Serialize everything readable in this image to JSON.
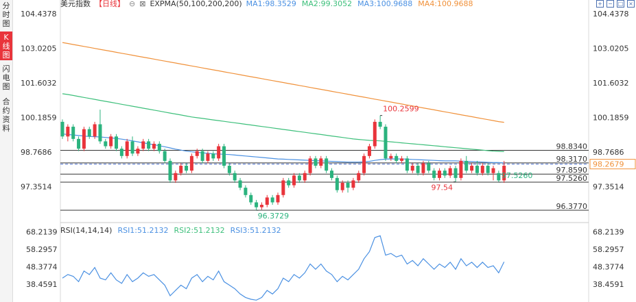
{
  "sidebar": {
    "tabs": [
      {
        "label": "分时图",
        "active": false
      },
      {
        "label": "K线图",
        "active": true
      },
      {
        "label": "闪电图",
        "active": false
      },
      {
        "label": "合约资料",
        "active": false
      }
    ]
  },
  "header": {
    "title": "美元指数",
    "period": "【日线】",
    "indicator": "EXPMA(50,100,200,200)",
    "ma": [
      {
        "label": "MA1:98.3529",
        "color": "#4a90e2"
      },
      {
        "label": "MA2:99.3052",
        "color": "#3cbf7a"
      },
      {
        "label": "MA3:100.9688",
        "color": "#4a90e2"
      },
      {
        "label": "MA4:100.9688",
        "color": "#f0913a"
      }
    ]
  },
  "toolbar": {
    "icons": [
      "zoom-in-icon",
      "zoom-out-icon",
      "fullscreen-icon",
      "close-icon"
    ]
  },
  "colors": {
    "up": "#e9343b",
    "down": "#2bb37e",
    "ma50": "#4a90e2",
    "ma100": "#3cbf7a",
    "ma200": "#f0913a",
    "rsi": "#4a90e2"
  },
  "chart_data": [
    {
      "type": "candlestick",
      "title": "美元指数【日线】",
      "y_ticks": [
        "104.4378",
        "103.0205",
        "101.6032",
        "100.1859",
        "98.7686",
        "97.3514"
      ],
      "ylim": [
        95.9,
        104.6
      ],
      "current_price": "98.2679",
      "candles": [
        [
          100.0,
          99.4,
          100.1,
          99.3
        ],
        [
          99.4,
          99.8,
          99.9,
          99.2
        ],
        [
          99.8,
          99.3,
          99.9,
          99.2
        ],
        [
          99.3,
          98.9,
          99.4,
          98.8
        ],
        [
          98.9,
          99.7,
          99.8,
          98.8
        ],
        [
          99.7,
          99.4,
          99.8,
          99.3
        ],
        [
          99.4,
          99.9,
          100.0,
          99.3
        ],
        [
          99.9,
          99.2,
          100.5,
          99.1
        ],
        [
          99.2,
          99.0,
          99.3,
          98.9
        ],
        [
          99.0,
          99.4,
          99.5,
          98.9
        ],
        [
          99.4,
          98.9,
          99.5,
          98.8
        ],
        [
          98.9,
          98.6,
          99.0,
          98.5
        ],
        [
          98.6,
          99.2,
          99.3,
          98.5
        ],
        [
          99.2,
          98.7,
          99.4,
          98.6
        ],
        [
          98.7,
          98.9,
          99.0,
          98.6
        ],
        [
          98.9,
          99.2,
          99.3,
          98.8
        ],
        [
          99.2,
          98.9,
          99.3,
          98.8
        ],
        [
          98.9,
          99.1,
          99.2,
          98.8
        ],
        [
          99.1,
          98.8,
          99.2,
          98.7
        ],
        [
          98.8,
          98.4,
          98.9,
          98.3
        ],
        [
          98.4,
          97.6,
          98.5,
          97.5
        ],
        [
          97.6,
          97.9,
          98.0,
          97.5
        ],
        [
          97.9,
          98.2,
          98.3,
          97.8
        ],
        [
          98.2,
          98.0,
          98.3,
          97.9
        ],
        [
          98.0,
          98.6,
          98.7,
          97.9
        ],
        [
          98.6,
          98.8,
          98.9,
          98.5
        ],
        [
          98.8,
          98.4,
          98.9,
          98.3
        ],
        [
          98.4,
          98.7,
          98.8,
          98.3
        ],
        [
          98.7,
          98.5,
          98.8,
          98.4
        ],
        [
          98.5,
          99.0,
          99.1,
          98.4
        ],
        [
          99.0,
          98.2,
          99.1,
          98.1
        ],
        [
          98.2,
          97.9,
          98.3,
          97.8
        ],
        [
          97.9,
          97.6,
          98.0,
          97.5
        ],
        [
          97.6,
          97.3,
          97.7,
          97.2
        ],
        [
          97.3,
          97.0,
          97.4,
          96.9
        ],
        [
          97.0,
          96.7,
          97.1,
          96.6
        ],
        [
          96.7,
          96.5,
          96.8,
          96.37
        ],
        [
          96.5,
          96.6,
          96.7,
          96.4
        ],
        [
          96.6,
          96.9,
          97.0,
          96.5
        ],
        [
          96.9,
          96.7,
          97.0,
          96.6
        ],
        [
          96.7,
          97.0,
          97.1,
          96.6
        ],
        [
          97.0,
          97.6,
          97.7,
          96.9
        ],
        [
          97.6,
          97.4,
          97.7,
          97.3
        ],
        [
          97.4,
          97.8,
          97.9,
          97.3
        ],
        [
          97.8,
          97.6,
          97.9,
          97.5
        ],
        [
          97.6,
          97.9,
          98.0,
          97.5
        ],
        [
          97.9,
          98.5,
          98.6,
          97.8
        ],
        [
          98.5,
          98.2,
          98.6,
          98.1
        ],
        [
          98.2,
          98.5,
          98.6,
          98.1
        ],
        [
          98.5,
          98.0,
          98.6,
          97.9
        ],
        [
          98.0,
          97.7,
          98.1,
          97.6
        ],
        [
          97.7,
          97.2,
          97.8,
          97.1
        ],
        [
          97.2,
          97.5,
          97.6,
          97.1
        ],
        [
          97.5,
          97.3,
          97.6,
          97.1
        ],
        [
          97.3,
          97.6,
          97.7,
          97.2
        ],
        [
          97.6,
          97.9,
          98.0,
          97.5
        ],
        [
          97.9,
          98.6,
          98.7,
          97.8
        ],
        [
          98.6,
          99.0,
          99.1,
          98.5
        ],
        [
          99.0,
          100.0,
          100.1,
          98.9
        ],
        [
          100.0,
          99.8,
          100.26,
          99.7
        ],
        [
          99.8,
          98.5,
          99.9,
          98.4
        ],
        [
          98.5,
          98.6,
          98.7,
          98.4
        ],
        [
          98.6,
          98.4,
          98.7,
          98.3
        ],
        [
          98.4,
          98.5,
          98.6,
          98.3
        ],
        [
          98.5,
          98.0,
          98.6,
          97.9
        ],
        [
          98.0,
          98.2,
          98.3,
          97.9
        ],
        [
          98.2,
          97.9,
          98.3,
          97.8
        ],
        [
          97.9,
          98.3,
          98.4,
          97.8
        ],
        [
          98.3,
          98.0,
          98.4,
          97.9
        ],
        [
          98.0,
          97.7,
          98.1,
          97.6
        ],
        [
          97.7,
          98.0,
          98.1,
          97.6
        ],
        [
          98.0,
          97.8,
          98.1,
          97.7
        ],
        [
          97.8,
          98.1,
          98.2,
          97.7
        ],
        [
          98.1,
          97.7,
          98.2,
          97.54
        ],
        [
          97.7,
          98.4,
          98.5,
          97.6
        ],
        [
          98.4,
          98.0,
          98.6,
          97.9
        ],
        [
          98.0,
          98.2,
          98.3,
          97.9
        ],
        [
          98.2,
          97.9,
          98.4,
          97.8
        ],
        [
          97.9,
          98.2,
          98.3,
          97.8
        ],
        [
          98.2,
          97.9,
          98.3,
          97.8
        ],
        [
          97.9,
          98.1,
          98.2,
          97.6
        ],
        [
          97.9,
          97.6,
          98.0,
          97.53
        ],
        [
          97.6,
          98.2,
          98.4,
          97.5
        ]
      ],
      "ma50": [
        99.5,
        99.48,
        99.46,
        99.44,
        99.42,
        99.4,
        99.39,
        99.38,
        99.36,
        99.34,
        99.32,
        99.29,
        99.26,
        99.22,
        99.18,
        99.14,
        99.1,
        99.06,
        99.02,
        98.98,
        98.93,
        98.88,
        98.84,
        98.8,
        98.77,
        98.75,
        98.73,
        98.71,
        98.69,
        98.68,
        98.67,
        98.66,
        98.64,
        98.62,
        98.6,
        98.58,
        98.56,
        98.54,
        98.52,
        98.5,
        98.48,
        98.47,
        98.46,
        98.45,
        98.44,
        98.43,
        98.42,
        98.41,
        98.4,
        98.39,
        98.38,
        98.37,
        98.36,
        98.35,
        98.35,
        98.35,
        98.36,
        98.38,
        98.42,
        98.45,
        98.47,
        98.48,
        98.48,
        98.48,
        98.47,
        98.46,
        98.45,
        98.44,
        98.43,
        98.42,
        98.41,
        98.4,
        98.4,
        98.4,
        98.39,
        98.38,
        98.37,
        98.36,
        98.35,
        98.34,
        98.33,
        98.33,
        98.32
      ],
      "ma100": [
        101.15,
        101.12,
        101.08,
        101.04,
        101.0,
        100.96,
        100.92,
        100.88,
        100.84,
        100.8,
        100.76,
        100.72,
        100.68,
        100.64,
        100.6,
        100.56,
        100.52,
        100.48,
        100.44,
        100.4,
        100.36,
        100.32,
        100.28,
        100.24,
        100.2,
        100.17,
        100.14,
        100.11,
        100.08,
        100.05,
        100.02,
        99.99,
        99.96,
        99.93,
        99.9,
        99.87,
        99.84,
        99.81,
        99.78,
        99.75,
        99.72,
        99.69,
        99.66,
        99.63,
        99.6,
        99.57,
        99.54,
        99.51,
        99.48,
        99.45,
        99.42,
        99.39,
        99.36,
        99.33,
        99.3,
        99.28,
        99.26,
        99.24,
        99.23,
        99.22,
        99.2,
        99.18,
        99.16,
        99.14,
        99.12,
        99.1,
        99.08,
        99.06,
        99.04,
        99.02,
        99.0,
        98.98,
        98.96,
        98.94,
        98.92,
        98.9,
        98.88,
        98.86,
        98.84,
        98.82,
        98.8,
        98.79,
        98.78
      ],
      "ma200": [
        103.25,
        103.21,
        103.17,
        103.13,
        103.09,
        103.05,
        103.01,
        102.97,
        102.93,
        102.89,
        102.85,
        102.81,
        102.77,
        102.73,
        102.69,
        102.65,
        102.61,
        102.57,
        102.53,
        102.49,
        102.45,
        102.41,
        102.37,
        102.33,
        102.29,
        102.25,
        102.21,
        102.17,
        102.13,
        102.09,
        102.05,
        102.01,
        101.97,
        101.93,
        101.89,
        101.85,
        101.81,
        101.77,
        101.73,
        101.69,
        101.65,
        101.61,
        101.57,
        101.53,
        101.49,
        101.45,
        101.41,
        101.37,
        101.33,
        101.29,
        101.25,
        101.21,
        101.17,
        101.13,
        101.09,
        101.05,
        101.01,
        100.97,
        100.93,
        100.89,
        100.85,
        100.81,
        100.77,
        100.73,
        100.69,
        100.65,
        100.61,
        100.57,
        100.53,
        100.49,
        100.45,
        100.41,
        100.37,
        100.33,
        100.29,
        100.25,
        100.21,
        100.17,
        100.13,
        100.09,
        100.05,
        100.01,
        99.98
      ],
      "levels": [
        {
          "value": 98.834,
          "label": "98.8340",
          "color": "#333333",
          "dashed": false
        },
        {
          "value": 98.317,
          "label": "98.3170",
          "color": "#333333",
          "dashed": false
        },
        {
          "value": 98.2679,
          "label": "",
          "color": "#4a6fd0",
          "dashed": true
        },
        {
          "value": 97.859,
          "label": "97.8590",
          "color": "#333333",
          "dashed": false
        },
        {
          "value": 97.526,
          "label": "97.5260",
          "color": "#333333",
          "dashed": false
        },
        {
          "value": 96.377,
          "label": "96.3770",
          "color": "#333333",
          "dashed": false
        }
      ],
      "annotations": [
        {
          "label": "100.2599",
          "value": 100.2599,
          "index": 59,
          "color": "#e9343b",
          "side": "right"
        },
        {
          "label": "96.3729",
          "value": 96.3729,
          "index": 36,
          "color": "#2bb37e",
          "side": "below"
        },
        {
          "label": "97.54",
          "value": 97.54,
          "index": 73,
          "color": "#e9343b",
          "side": "left"
        },
        {
          "label": "97.5260",
          "value": 97.526,
          "index": 81,
          "color": "#2bb37e",
          "side": "right"
        }
      ]
    },
    {
      "type": "line",
      "title": "RSI(14,14,14)",
      "legend": [
        {
          "label": "RSI1:51.2132",
          "color": "#4a90e2"
        },
        {
          "label": "RSI2:51.2132",
          "color": "#3cbf7a"
        },
        {
          "label": "RSI3:51.2132",
          "color": "#4a90e2"
        }
      ],
      "y_ticks": [
        "68.2139",
        "58.2957",
        "48.3774",
        "38.4591"
      ],
      "ylim": [
        30.0,
        70.0
      ],
      "series": [
        {
          "name": "RSI1",
          "values": [
            42.0,
            44.0,
            43.0,
            40.0,
            46.0,
            44.0,
            48.0,
            42.0,
            41.0,
            45.0,
            41.0,
            39.0,
            44.0,
            40.0,
            42.0,
            45.0,
            43.0,
            44.0,
            41.0,
            38.0,
            32.0,
            35.0,
            38.0,
            36.0,
            42.0,
            44.0,
            40.0,
            43.0,
            41.0,
            46.0,
            40.0,
            38.0,
            36.0,
            33.0,
            31.0,
            30.0,
            29.5,
            31.0,
            35.0,
            33.0,
            36.0,
            42.0,
            40.0,
            44.0,
            42.0,
            45.0,
            50.0,
            47.0,
            50.0,
            46.0,
            44.0,
            40.0,
            43.0,
            41.0,
            44.0,
            47.0,
            53.0,
            57.0,
            65.0,
            66.0,
            55.0,
            56.0,
            54.0,
            55.0,
            50.0,
            52.0,
            49.0,
            53.0,
            50.0,
            47.0,
            50.0,
            48.0,
            51.0,
            47.0,
            53.0,
            49.0,
            51.0,
            48.0,
            51.0,
            48.0,
            49.0,
            45.0,
            51.2
          ]
        }
      ]
    }
  ]
}
